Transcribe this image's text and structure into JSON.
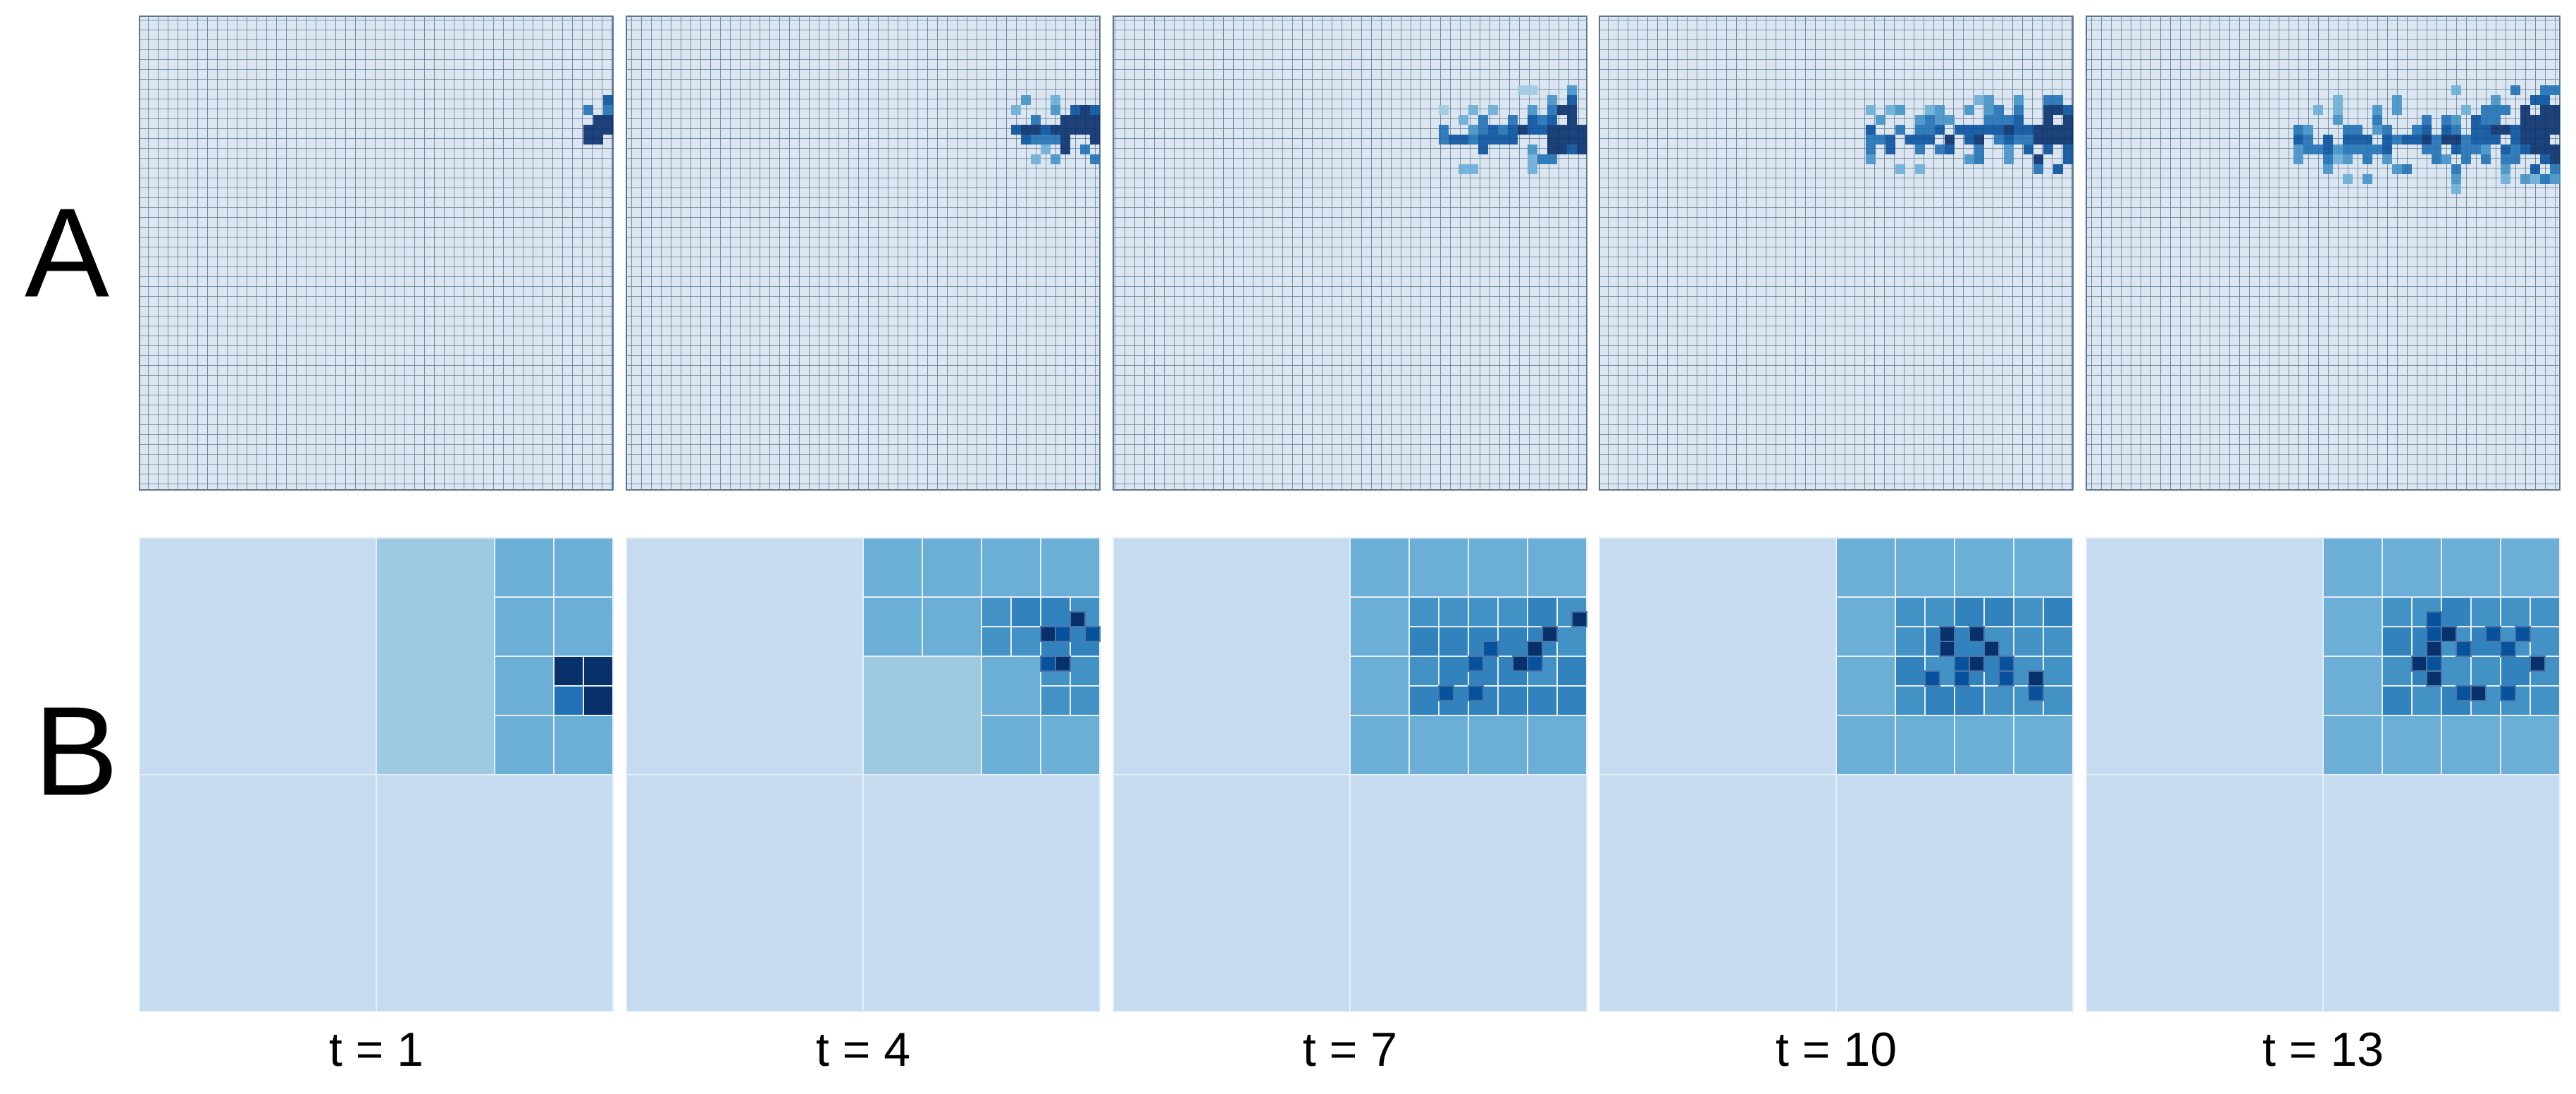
{
  "row_labels": [
    "A",
    "B"
  ],
  "columns": [
    "t = 1",
    "t = 4",
    "t = 7",
    "t = 10",
    "t = 13"
  ]
}
